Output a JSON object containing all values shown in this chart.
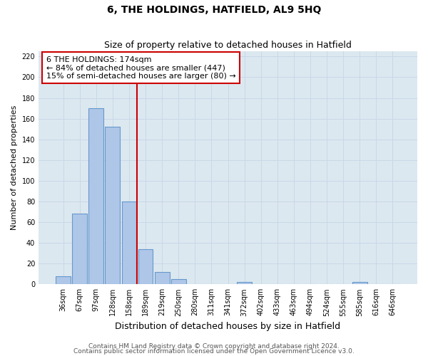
{
  "title": "6, THE HOLDINGS, HATFIELD, AL9 5HQ",
  "subtitle": "Size of property relative to detached houses in Hatfield",
  "xlabel": "Distribution of detached houses by size in Hatfield",
  "ylabel": "Number of detached properties",
  "bar_labels": [
    "36sqm",
    "67sqm",
    "97sqm",
    "128sqm",
    "158sqm",
    "189sqm",
    "219sqm",
    "250sqm",
    "280sqm",
    "311sqm",
    "341sqm",
    "372sqm",
    "402sqm",
    "433sqm",
    "463sqm",
    "494sqm",
    "524sqm",
    "555sqm",
    "585sqm",
    "616sqm",
    "646sqm"
  ],
  "bar_values": [
    8,
    68,
    170,
    152,
    80,
    34,
    12,
    5,
    0,
    0,
    0,
    2,
    0,
    0,
    0,
    0,
    0,
    0,
    2,
    0,
    0
  ],
  "bar_color": "#aec6e8",
  "bar_edge_color": "#6699cc",
  "vline_color": "#cc0000",
  "annotation_line1": "6 THE HOLDINGS: 174sqm",
  "annotation_line2": "← 84% of detached houses are smaller (447)",
  "annotation_line3": "15% of semi-detached houses are larger (80) →",
  "annotation_box_facecolor": "white",
  "annotation_box_edgecolor": "#cc0000",
  "ylim": [
    0,
    225
  ],
  "yticks": [
    0,
    20,
    40,
    60,
    80,
    100,
    120,
    140,
    160,
    180,
    200,
    220
  ],
  "grid_color": "#c8d8e8",
  "bg_color": "#dce8f0",
  "title_fontsize": 10,
  "subtitle_fontsize": 9,
  "ylabel_fontsize": 8,
  "xlabel_fontsize": 9,
  "tick_fontsize": 7,
  "annotation_fontsize": 8,
  "footer1": "Contains HM Land Registry data © Crown copyright and database right 2024.",
  "footer2": "Contains public sector information licensed under the Open Government Licence v3.0.",
  "footer_fontsize": 6.5
}
